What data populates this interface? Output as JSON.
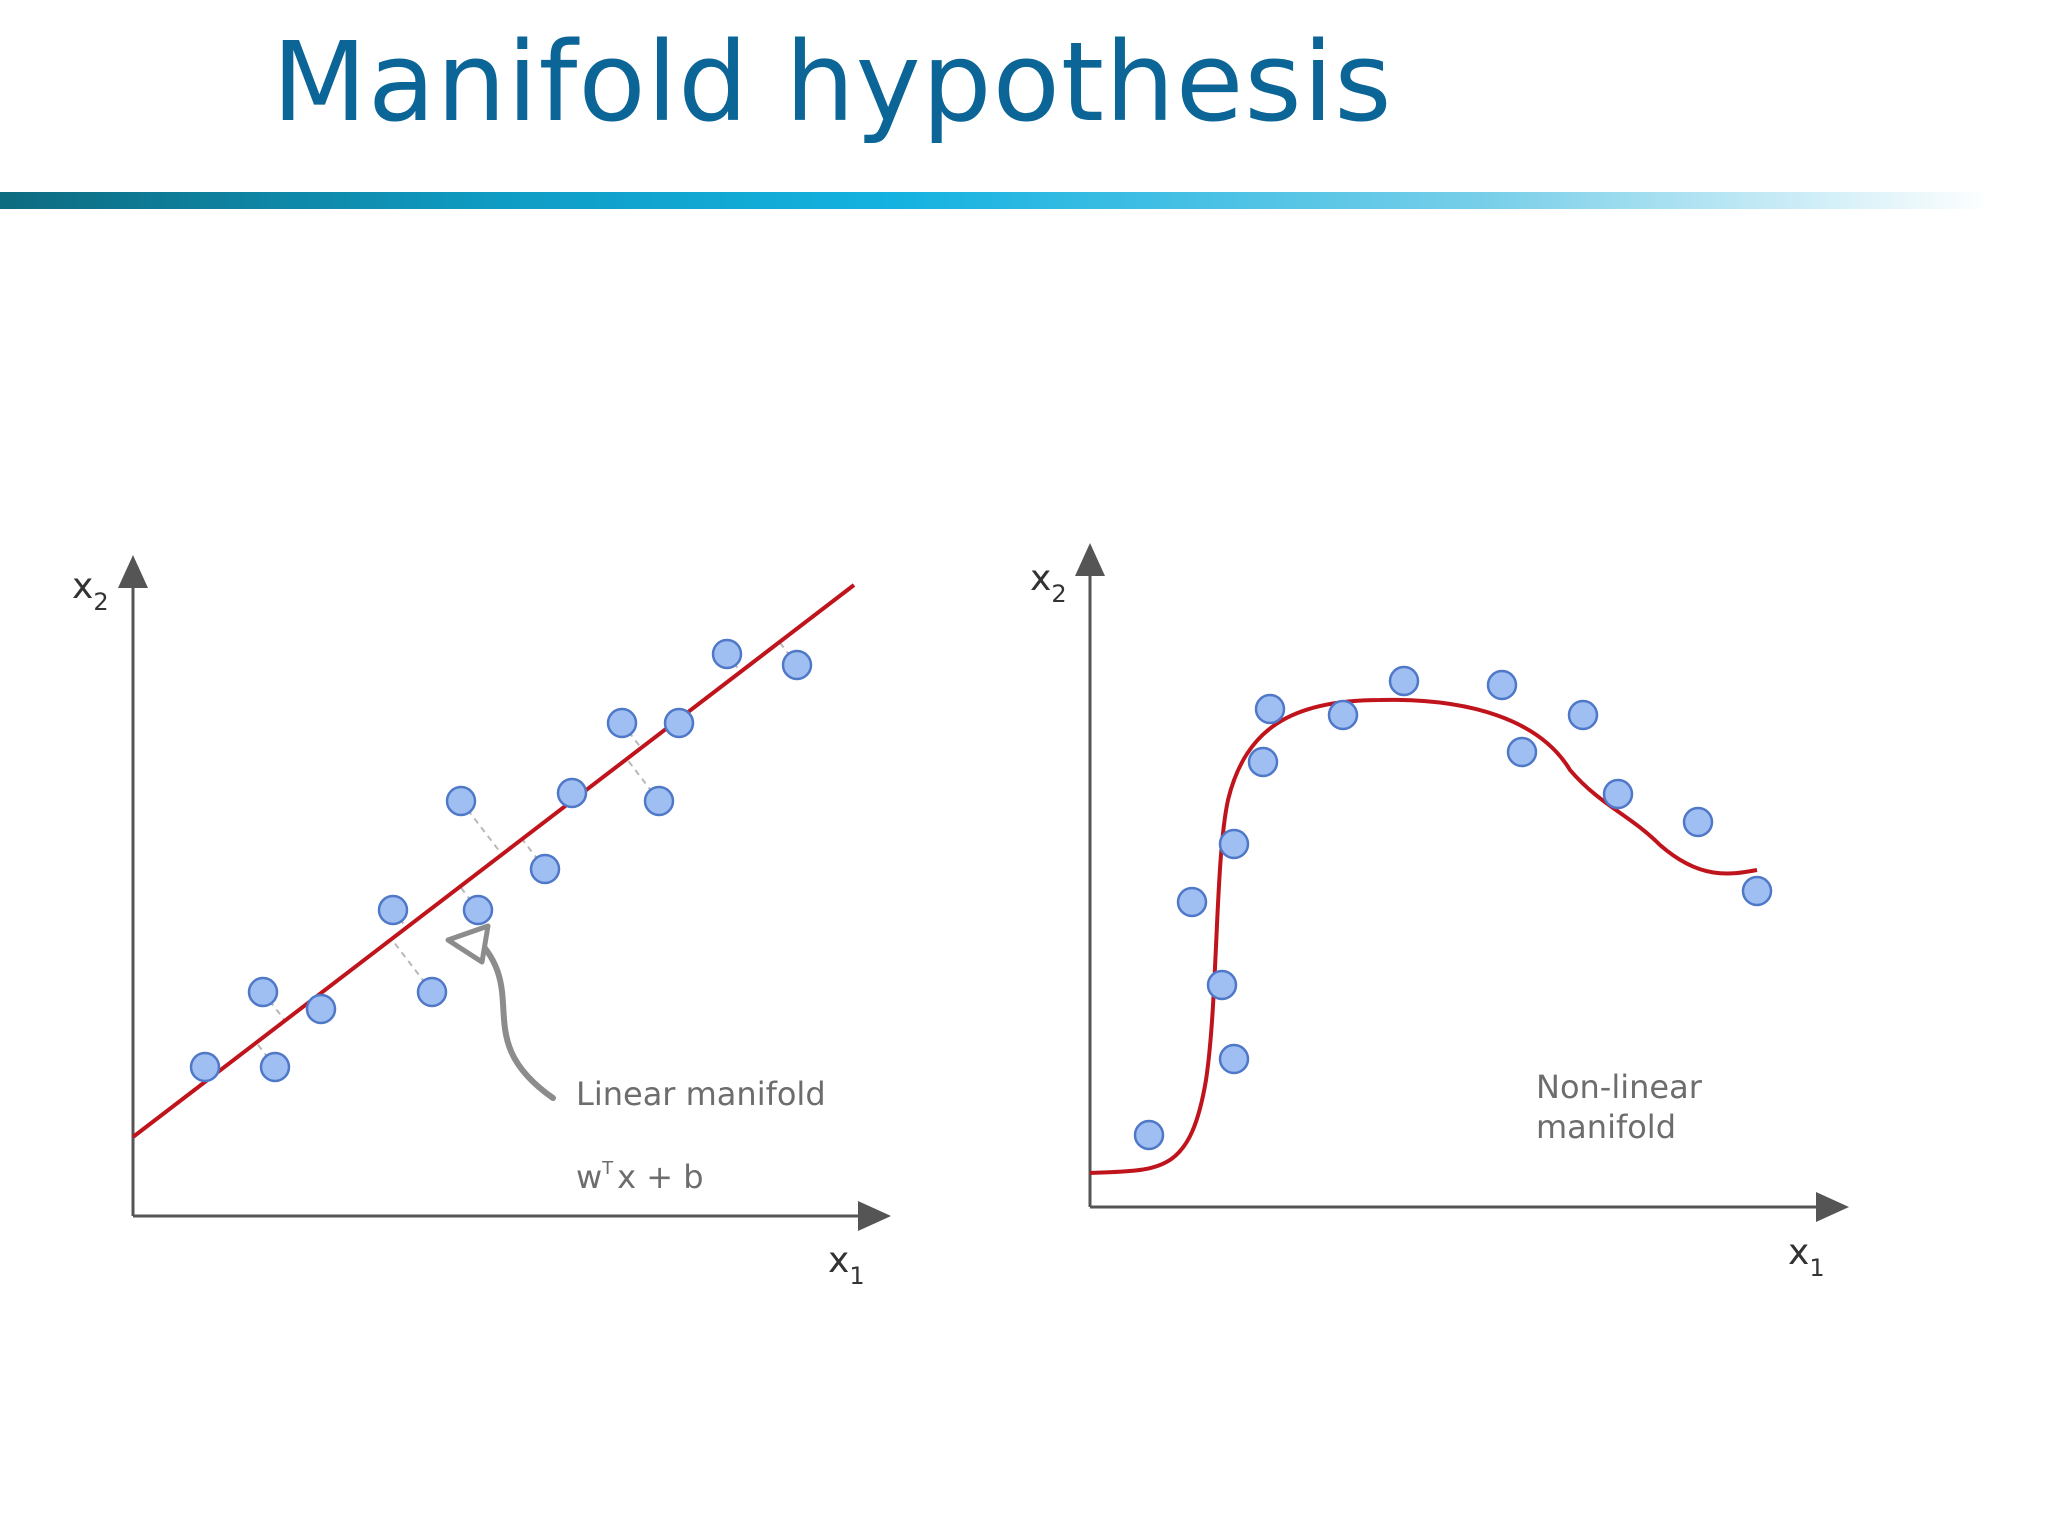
{
  "slide": {
    "title": "Manifold hypothesis"
  },
  "left_panel": {
    "y_axis_label": "x",
    "y_axis_sub": "2",
    "x_axis_label": "x",
    "x_axis_sub": "1",
    "manifold_label": "Linear manifold",
    "equation_w": "w",
    "equation_sup": "T",
    "equation_rest": "x + b"
  },
  "right_panel": {
    "y_axis_label": "x",
    "y_axis_sub": "2",
    "x_axis_label": "x",
    "x_axis_sub": "1",
    "manifold_label_line1": "Non-linear",
    "manifold_label_line2": "manifold"
  },
  "colors": {
    "title": "#0b6596",
    "curve": "#c0141c",
    "point_fill": "#9fbef2",
    "point_stroke": "#4f78c8",
    "axis": "#555555",
    "annotation": "#6d6d6d"
  }
}
